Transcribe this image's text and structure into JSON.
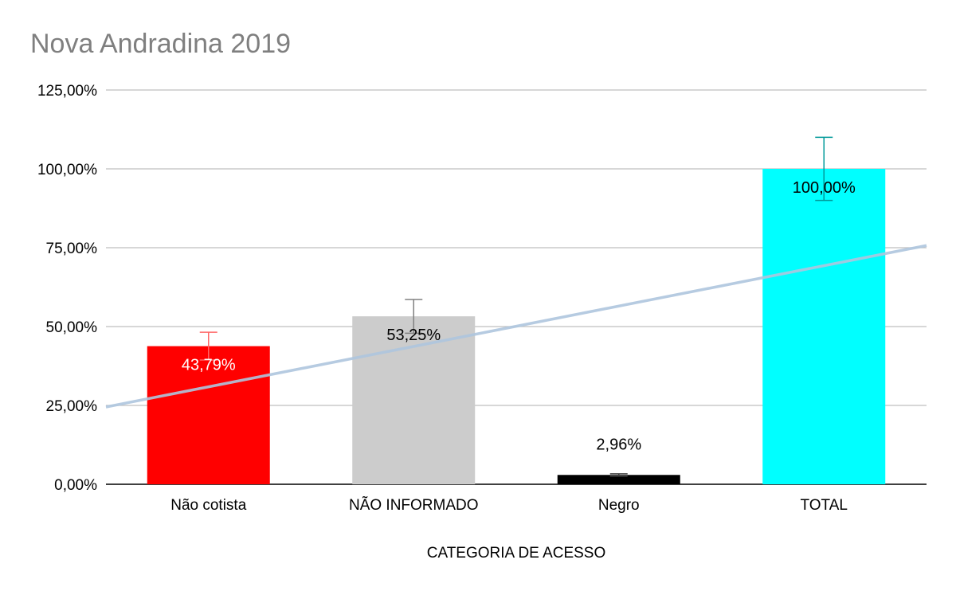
{
  "chart_data": {
    "type": "bar",
    "title": "Nova Andradina 2019",
    "xlabel": "CATEGORIA DE ACESSO",
    "ylabel": "",
    "categories": [
      "Não cotista",
      "NÃO INFORMADO",
      "Negro",
      "TOTAL"
    ],
    "values": [
      43.79,
      53.25,
      2.96,
      100.0
    ],
    "data_labels": [
      "43,79%",
      "53,25%",
      "2,96%",
      "100,00%"
    ],
    "error_bar_upper": [
      48.2,
      58.6,
      3.3,
      110.0
    ],
    "error_bar_lower": [
      39.4,
      47.9,
      2.6,
      90.0
    ],
    "bar_colors": [
      "#ff0000",
      "#cccccc",
      "#000000",
      "#00ffff"
    ],
    "error_bar_colors": [
      "#ff6666",
      "#808080",
      "#404040",
      "#009999"
    ],
    "data_label_colors": [
      "#ffffff",
      "#000000",
      "#000000",
      "#000000"
    ],
    "trendline": {
      "type": "linear",
      "y_at_left_edge": 24.5,
      "y_at_right_edge": 75.7,
      "color": "#aec5de"
    },
    "yticks": [
      "0,00%",
      "25,00%",
      "50,00%",
      "75,00%",
      "100,00%",
      "125,00%"
    ],
    "ylim": [
      0,
      125
    ],
    "grid": true,
    "legend": "none"
  }
}
